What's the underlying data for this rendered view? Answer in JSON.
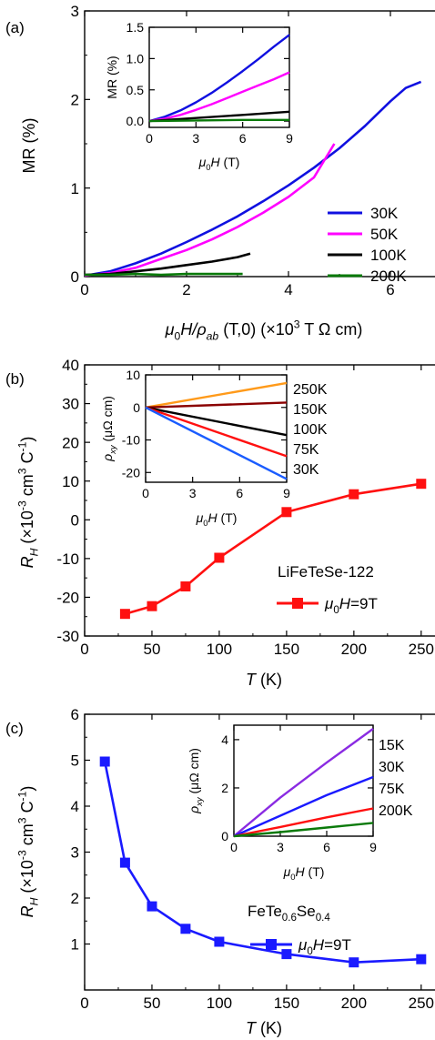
{
  "chart_data": [
    {
      "id": "a",
      "panel_label": "(a)",
      "type": "line",
      "xlabel": {
        "mu": "μ",
        "sub0": "0",
        "mid": "H/",
        "rho": "ρ",
        "subab": "ab",
        "rest": " (T,0) (×10",
        "exp": "3",
        "tail": " T Ω cm)"
      },
      "ylabel": "MR (%)",
      "xlim": [
        0,
        7
      ],
      "ylim": [
        0,
        3
      ],
      "xticks": [
        0,
        2,
        4,
        6
      ],
      "yticks": [
        0,
        1,
        2,
        3
      ],
      "legend_position": "right",
      "series": [
        {
          "name": "30K",
          "color": "#1010e0",
          "x": [
            0,
            0.5,
            1,
            1.5,
            2,
            2.5,
            3,
            3.5,
            4,
            4.5,
            5,
            5.5,
            6,
            6.3,
            6.6
          ],
          "y": [
            0.01,
            0.06,
            0.15,
            0.26,
            0.39,
            0.53,
            0.68,
            0.85,
            1.03,
            1.23,
            1.45,
            1.7,
            1.98,
            2.13,
            2.2
          ]
        },
        {
          "name": "50K",
          "color": "#ff00ff",
          "x": [
            0,
            0.5,
            1,
            1.5,
            2,
            2.5,
            3,
            3.5,
            4,
            4.5,
            4.9
          ],
          "y": [
            0.01,
            0.04,
            0.1,
            0.2,
            0.3,
            0.42,
            0.56,
            0.72,
            0.9,
            1.12,
            1.5
          ]
        },
        {
          "name": "100K",
          "color": "#000000",
          "x": [
            0,
            0.5,
            1,
            1.5,
            2,
            2.5,
            3,
            3.25
          ],
          "y": [
            0.02,
            0.03,
            0.06,
            0.09,
            0.13,
            0.17,
            0.22,
            0.26
          ]
        },
        {
          "name": "200K",
          "color": "#0a7a0a",
          "x": [
            0,
            0.5,
            1,
            1.5,
            2,
            2.5,
            3.1
          ],
          "y": [
            0.02,
            0.02,
            0.03,
            0.02,
            0.03,
            0.03,
            0.03
          ]
        }
      ],
      "inset": {
        "xlabel": "μ0H (T)",
        "ylabel": "MR (%)",
        "xlim": [
          0,
          9
        ],
        "ylim": [
          -0.1,
          1.5
        ],
        "xticks": [
          0,
          3,
          6,
          9
        ],
        "yticks": [
          0.0,
          0.5,
          1.0,
          1.5
        ],
        "series": [
          {
            "name": "30K",
            "color": "#1010e0",
            "x": [
              0,
              1,
              2,
              3,
              4,
              5,
              6,
              7,
              8,
              9
            ],
            "y": [
              0.0,
              0.07,
              0.17,
              0.3,
              0.45,
              0.62,
              0.8,
              0.99,
              1.19,
              1.38
            ]
          },
          {
            "name": "50K",
            "color": "#ff00ff",
            "x": [
              0,
              1,
              2,
              3,
              4,
              5,
              6,
              7,
              8,
              9
            ],
            "y": [
              0.0,
              0.04,
              0.1,
              0.18,
              0.27,
              0.37,
              0.47,
              0.57,
              0.67,
              0.78
            ]
          },
          {
            "name": "100K",
            "color": "#000000",
            "x": [
              0,
              3,
              6,
              9
            ],
            "y": [
              0.0,
              0.05,
              0.1,
              0.15
            ]
          },
          {
            "name": "200K",
            "color": "#0a7a0a",
            "x": [
              0,
              3,
              6,
              9
            ],
            "y": [
              0.0,
              0.01,
              0.02,
              0.02
            ]
          }
        ]
      }
    },
    {
      "id": "b",
      "panel_label": "(b)",
      "type": "line",
      "xlabel": "T (K)",
      "ylabel": {
        "main": "R",
        "sub": "H",
        "rest": " (×10",
        "exp": "-3",
        "tail": " cm",
        "exp2": "3",
        "tail2": " C",
        "exp3": "-1",
        "end": ")"
      },
      "xlim": [
        0,
        265
      ],
      "ylim": [
        -30,
        40
      ],
      "xticks": [
        0,
        50,
        100,
        150,
        200,
        250
      ],
      "yticks": [
        -30,
        -20,
        -10,
        0,
        10,
        20,
        30,
        40
      ],
      "sample": "LiFeTeSe-122",
      "legend": "μ0H=9T",
      "series": [
        {
          "name": "μ0H=9T",
          "color": "#ff1010",
          "x": [
            30,
            50,
            75,
            100,
            150,
            200,
            250
          ],
          "y": [
            -24.3,
            -22.3,
            -17.2,
            -9.8,
            2.0,
            6.6,
            9.3
          ]
        }
      ],
      "inset": {
        "xlabel": "μ0H (T)",
        "ylabel": "ρxy (μΩ cm)",
        "xlim": [
          0,
          9
        ],
        "ylim": [
          -23,
          10
        ],
        "xticks": [
          0,
          3,
          6,
          9
        ],
        "yticks": [
          -20,
          -10,
          0,
          10
        ],
        "series": [
          {
            "name": "250K",
            "color": "#ff9a1a",
            "x": [
              0,
              9
            ],
            "y": [
              0,
              7.5
            ]
          },
          {
            "name": "150K",
            "color": "#8a0000",
            "x": [
              0,
              9
            ],
            "y": [
              0,
              1.5
            ]
          },
          {
            "name": "100K",
            "color": "#000000",
            "x": [
              0,
              9
            ],
            "y": [
              0,
              -8.5
            ]
          },
          {
            "name": "75K",
            "color": "#ff1010",
            "x": [
              0,
              9
            ],
            "y": [
              0,
              -15
            ]
          },
          {
            "name": "30K",
            "color": "#1a5cff",
            "x": [
              0,
              9
            ],
            "y": [
              0,
              -22
            ]
          }
        ]
      }
    },
    {
      "id": "c",
      "panel_label": "(c)",
      "type": "line",
      "xlabel": "T (K)",
      "ylabel": {
        "main": "R",
        "sub": "H",
        "rest": " (×10",
        "exp": "-3",
        "tail": " cm",
        "exp2": "3",
        "tail2": " C",
        "exp3": "-1",
        "end": ")"
      },
      "xlim": [
        0,
        265
      ],
      "ylim": [
        0,
        6
      ],
      "xticks": [
        0,
        50,
        100,
        150,
        200,
        250
      ],
      "yticks": [
        1,
        2,
        3,
        4,
        5,
        6
      ],
      "sample": {
        "main": "FeTe",
        "sub1": "0.6",
        "mid": "Se",
        "sub2": "0.4"
      },
      "legend": "μ0H=9T",
      "series": [
        {
          "name": "μ0H=9T",
          "color": "#1a1aff",
          "x": [
            15,
            30,
            50,
            75,
            100,
            150,
            200,
            250
          ],
          "y": [
            4.97,
            2.77,
            1.82,
            1.33,
            1.05,
            0.78,
            0.6,
            0.67
          ]
        }
      ],
      "inset": {
        "xlabel": "μ0H (T)",
        "ylabel": "ρxy (μΩ cm)",
        "xlim": [
          0,
          9
        ],
        "ylim": [
          0,
          4.6
        ],
        "xticks": [
          0,
          3,
          6,
          9
        ],
        "yticks": [
          0,
          2,
          4
        ],
        "series": [
          {
            "name": "15K",
            "color": "#8a2be2",
            "x": [
              0,
              3,
              6,
              9
            ],
            "y": [
              0,
              1.6,
              3.05,
              4.45
            ]
          },
          {
            "name": "30K",
            "color": "#1a1aff",
            "x": [
              0,
              3,
              6,
              9
            ],
            "y": [
              0,
              0.85,
              1.7,
              2.45
            ]
          },
          {
            "name": "75K",
            "color": "#ff1010",
            "x": [
              0,
              3,
              6,
              9
            ],
            "y": [
              0,
              0.38,
              0.78,
              1.15
            ]
          },
          {
            "name": "200K",
            "color": "#0a7a0a",
            "x": [
              0,
              3,
              6,
              9
            ],
            "y": [
              0,
              0.17,
              0.36,
              0.55
            ]
          }
        ]
      }
    }
  ]
}
